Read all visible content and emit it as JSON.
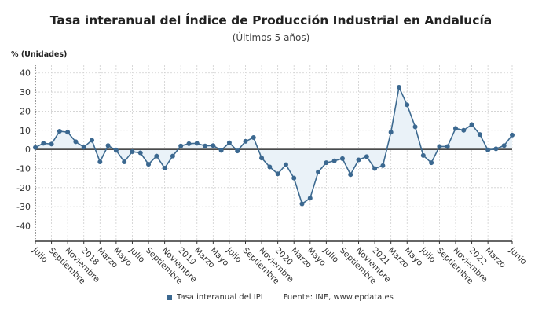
{
  "chart_data": {
    "type": "line",
    "title": "Tasa interanual del Índice de Producción Industrial en Andalucía",
    "subtitle": "(Últimos 5 años)",
    "ylabel": "% (Unidades)",
    "ylim": [
      -48,
      44
    ],
    "yticks": [
      40,
      30,
      20,
      10,
      0,
      -10,
      -20,
      -30,
      -40
    ],
    "grid": true,
    "area_fill_to_zero": true,
    "x": [
      "2017-07",
      "2017-08",
      "2017-09",
      "2017-10",
      "2017-11",
      "2017-12",
      "2018-01",
      "2018-02",
      "2018-03",
      "2018-04",
      "2018-05",
      "2018-06",
      "2018-07",
      "2018-08",
      "2018-09",
      "2018-10",
      "2018-11",
      "2018-12",
      "2019-01",
      "2019-02",
      "2019-03",
      "2019-04",
      "2019-05",
      "2019-06",
      "2019-07",
      "2019-08",
      "2019-09",
      "2019-10",
      "2019-11",
      "2019-12",
      "2020-01",
      "2020-02",
      "2020-03",
      "2020-04",
      "2020-05",
      "2020-06",
      "2020-07",
      "2020-08",
      "2020-09",
      "2020-10",
      "2020-11",
      "2020-12",
      "2021-01",
      "2021-02",
      "2021-03",
      "2021-04",
      "2021-05",
      "2021-06",
      "2021-07",
      "2021-08",
      "2021-09",
      "2021-10",
      "2021-11",
      "2021-12",
      "2022-01",
      "2022-02",
      "2022-03",
      "2022-04",
      "2022-05",
      "2022-06"
    ],
    "series": [
      {
        "name": "Tasa interanual del IPI",
        "values": [
          1,
          3.2,
          2.8,
          9.5,
          9,
          4,
          1.2,
          4.8,
          -6.5,
          2,
          -0.5,
          -6.5,
          -1.2,
          -1.8,
          -7.8,
          -3.5,
          -9.8,
          -3.5,
          1.8,
          3,
          3.2,
          1.8,
          2,
          -0.5,
          3.5,
          -0.8,
          4.2,
          6.2,
          -4.5,
          -9.2,
          -12.8,
          -8,
          -15,
          -28.5,
          -25.5,
          -11.8,
          -7,
          -6,
          -4.8,
          -13.2,
          -5.5,
          -3.8,
          -10,
          -8.5,
          9,
          32.5,
          23.3,
          11.8,
          -3.2,
          -7,
          1.5,
          1.5,
          11,
          10,
          13,
          7.8,
          -0.3,
          0.3,
          2,
          7.5
        ]
      }
    ],
    "x_tick_labels": [
      {
        "at": "2017-07",
        "label": "Julio"
      },
      {
        "at": "2017-09",
        "label": "Septiembre"
      },
      {
        "at": "2017-11",
        "label": "Noviembre"
      },
      {
        "at": "2018-01",
        "label": "2018"
      },
      {
        "at": "2018-03",
        "label": "Marzo"
      },
      {
        "at": "2018-05",
        "label": "Mayo"
      },
      {
        "at": "2018-07",
        "label": "Julio"
      },
      {
        "at": "2018-09",
        "label": "Septiembre"
      },
      {
        "at": "2018-11",
        "label": "Noviembre"
      },
      {
        "at": "2019-01",
        "label": "2019"
      },
      {
        "at": "2019-03",
        "label": "Marzo"
      },
      {
        "at": "2019-05",
        "label": "Mayo"
      },
      {
        "at": "2019-07",
        "label": "Julio"
      },
      {
        "at": "2019-09",
        "label": "Septiembre"
      },
      {
        "at": "2019-11",
        "label": "Noviembre"
      },
      {
        "at": "2020-01",
        "label": "2020"
      },
      {
        "at": "2020-03",
        "label": "Marzo"
      },
      {
        "at": "2020-05",
        "label": "Mayo"
      },
      {
        "at": "2020-07",
        "label": "Julio"
      },
      {
        "at": "2020-09",
        "label": "Septiembre"
      },
      {
        "at": "2020-11",
        "label": "Noviembre"
      },
      {
        "at": "2021-01",
        "label": "2021"
      },
      {
        "at": "2021-03",
        "label": "Marzo"
      },
      {
        "at": "2021-05",
        "label": "Mayo"
      },
      {
        "at": "2021-07",
        "label": "Julio"
      },
      {
        "at": "2021-09",
        "label": "Septiembre"
      },
      {
        "at": "2021-11",
        "label": "Noviembre"
      },
      {
        "at": "2022-01",
        "label": "2022"
      },
      {
        "at": "2022-03",
        "label": "Marzo"
      },
      {
        "at": "2022-06",
        "label": "Junio"
      }
    ],
    "legend": "bottom",
    "source": "Fuente: INE, www.epdata.es",
    "colors": {
      "line": "#3d6a90",
      "marker": "#3b6890",
      "fill": "#eaf2f8",
      "grid": "#cfcfcf",
      "axis": "#333333"
    }
  }
}
